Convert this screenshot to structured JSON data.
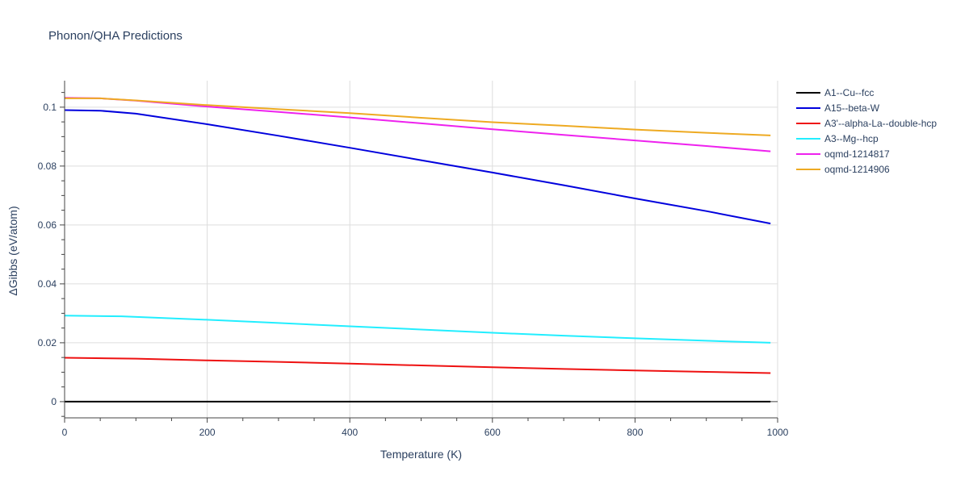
{
  "chart_data": {
    "type": "line",
    "title": "Phonon/QHA Predictions",
    "xlabel": "Temperature (K)",
    "ylabel": "ΔGibbs (eV/atom)",
    "xlim": [
      0,
      1000
    ],
    "ylim": [
      -0.0055,
      0.109
    ],
    "x_ticks": [
      0,
      200,
      400,
      600,
      800,
      1000
    ],
    "y_ticks": [
      0,
      0.02,
      0.04,
      0.06,
      0.08,
      0.1
    ],
    "x_tick_labels": [
      "0",
      "200",
      "400",
      "600",
      "800",
      "1000"
    ],
    "y_tick_labels": [
      "0",
      "0.02",
      "0.04",
      "0.06",
      "0.08",
      "0.1"
    ],
    "grid": true,
    "legend_position": "right",
    "series": [
      {
        "name": "A1--Cu--fcc",
        "color": "#000000",
        "x": [
          0,
          990
        ],
        "y": [
          0,
          0
        ]
      },
      {
        "name": "A15--beta-W",
        "color": "#0000dd",
        "x": [
          0,
          50,
          100,
          200,
          300,
          400,
          500,
          600,
          700,
          800,
          900,
          990
        ],
        "y": [
          0.099,
          0.0988,
          0.0978,
          0.0942,
          0.0903,
          0.0862,
          0.082,
          0.0778,
          0.0735,
          0.069,
          0.0647,
          0.0605
        ]
      },
      {
        "name": "A3'--alpha-La--double-hcp",
        "color": "#ee1111",
        "x": [
          0,
          100,
          200,
          300,
          400,
          500,
          600,
          700,
          800,
          900,
          990
        ],
        "y": [
          0.0149,
          0.0146,
          0.014,
          0.0135,
          0.0129,
          0.0123,
          0.0117,
          0.0111,
          0.0106,
          0.0101,
          0.0097
        ]
      },
      {
        "name": "A3--Mg--hcp",
        "color": "#22eeff",
        "x": [
          0,
          80,
          200,
          300,
          400,
          500,
          600,
          700,
          800,
          900,
          990
        ],
        "y": [
          0.0292,
          0.029,
          0.0278,
          0.0267,
          0.0256,
          0.0245,
          0.0234,
          0.0224,
          0.0215,
          0.0207,
          0.02
        ]
      },
      {
        "name": "oqmd-1214817",
        "color": "#ee22ee",
        "x": [
          0,
          50,
          100,
          200,
          300,
          400,
          500,
          600,
          700,
          800,
          900,
          990
        ],
        "y": [
          0.1032,
          0.103,
          0.1022,
          0.1002,
          0.0984,
          0.0965,
          0.0945,
          0.0925,
          0.0906,
          0.0887,
          0.0868,
          0.085
        ]
      },
      {
        "name": "oqmd-1214906",
        "color": "#eeaa22",
        "x": [
          0,
          50,
          100,
          200,
          300,
          400,
          500,
          600,
          700,
          800,
          900,
          990
        ],
        "y": [
          0.103,
          0.103,
          0.1023,
          0.1007,
          0.0993,
          0.098,
          0.0964,
          0.0949,
          0.0937,
          0.0924,
          0.0913,
          0.0904
        ]
      }
    ]
  }
}
